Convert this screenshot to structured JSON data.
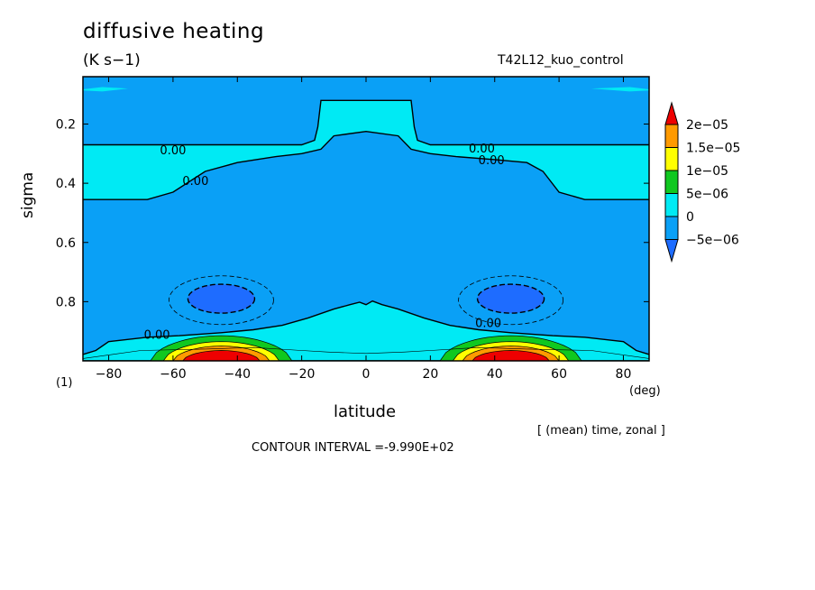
{
  "chart_data": {
    "type": "heatmap",
    "subtype": "filled-contour",
    "title": "diffusive heating",
    "units_label": "(K s−1)",
    "run_name": "T42L12_kuo_control",
    "xlabel": "latitude",
    "xunit": "(deg)",
    "ylabel": "sigma",
    "panel_label": "(1)",
    "averaging_note": "[ (mean) time, zonal ]",
    "contour_interval_text": "CONTOUR INTERVAL =-9.990E+02",
    "xlim": [
      -88,
      88
    ],
    "ylim": [
      0.04,
      1.0
    ],
    "y_reversed": true,
    "x_ticks": [
      -80,
      -60,
      -40,
      -20,
      0,
      20,
      40,
      60,
      80
    ],
    "x_tick_labels": [
      "−80",
      "−60",
      "−40",
      "−20",
      "0",
      "20",
      "40",
      "60",
      "80"
    ],
    "y_ticks": [
      0.2,
      0.4,
      0.6,
      0.8
    ],
    "y_tick_labels": [
      "0.2",
      "0.4",
      "0.6",
      "0.8"
    ],
    "colorbar": {
      "levels": [
        -5e-06,
        0,
        5e-06,
        1e-05,
        1.5e-05,
        2e-05
      ],
      "labels": [
        "−5e−06",
        "0",
        "5e−06",
        "1e−05",
        "1.5e−05",
        "2e−05"
      ],
      "colors": [
        "#1e6cff",
        "#0aa0f6",
        "#00eaf4",
        "#10c820",
        "#ffff00",
        "#ff9a00",
        "#ee0000"
      ]
    },
    "regions": [
      {
        "name": "background",
        "range": "-5e-06 to 0",
        "color": "#0aa0f6"
      },
      {
        "name": "upper-band",
        "range": "0 to 5e-06",
        "color": "#00eaf4",
        "sigma": [
          0.12,
          0.46
        ]
      },
      {
        "name": "low-level-band",
        "range": "0 to 5e-06",
        "color": "#00eaf4",
        "sigma": [
          0.8,
          1.0
        ]
      },
      {
        "name": "sh-negative-cell",
        "range": "< -5e-06",
        "color": "#1e6cff",
        "center": [
          -45,
          0.79
        ]
      },
      {
        "name": "nh-negative-cell",
        "range": "< -5e-06",
        "color": "#1e6cff",
        "center": [
          45,
          0.79
        ]
      },
      {
        "name": "sh-surface-max",
        "range": "> 2e-05",
        "color": "#ee0000",
        "center": [
          -45,
          0.98
        ]
      },
      {
        "name": "nh-surface-max",
        "range": "> 2e-05",
        "color": "#ee0000",
        "center": [
          45,
          0.98
        ]
      }
    ],
    "contour_labels": [
      {
        "text": "0.00",
        "x": -60,
        "y": 0.287
      },
      {
        "text": "0.00",
        "x": -53,
        "y": 0.39
      },
      {
        "text": "0.00",
        "x": 36,
        "y": 0.28
      },
      {
        "text": "0.00",
        "x": 39,
        "y": 0.32
      },
      {
        "text": "0.00",
        "x": -65,
        "y": 0.91
      },
      {
        "text": "0.00",
        "x": 38,
        "y": 0.87
      }
    ],
    "grid": false
  }
}
